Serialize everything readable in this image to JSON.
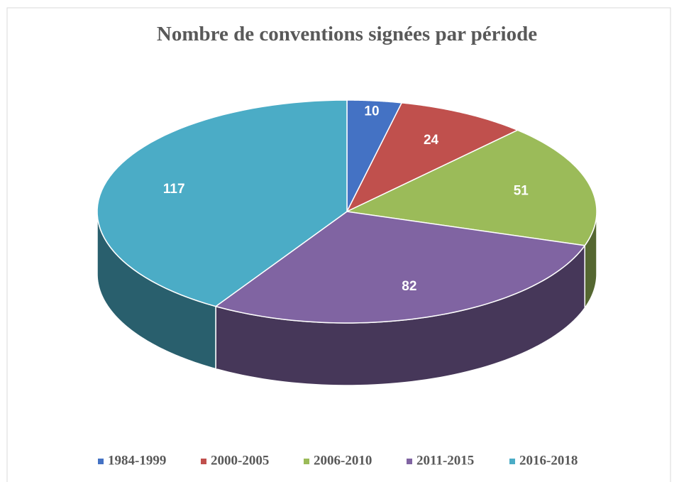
{
  "chart_data": {
    "type": "pie",
    "title": "Nombre de conventions signées par période",
    "categories": [
      "1984-1999",
      "2000-2005",
      "2006-2010",
      "2011-2015",
      "2016-2018"
    ],
    "values": [
      10,
      24,
      51,
      82,
      117
    ],
    "colors": [
      "#4472c4",
      "#c0504d",
      "#9bbb59",
      "#8064a2",
      "#4bacc6"
    ],
    "legend": "bottom"
  }
}
